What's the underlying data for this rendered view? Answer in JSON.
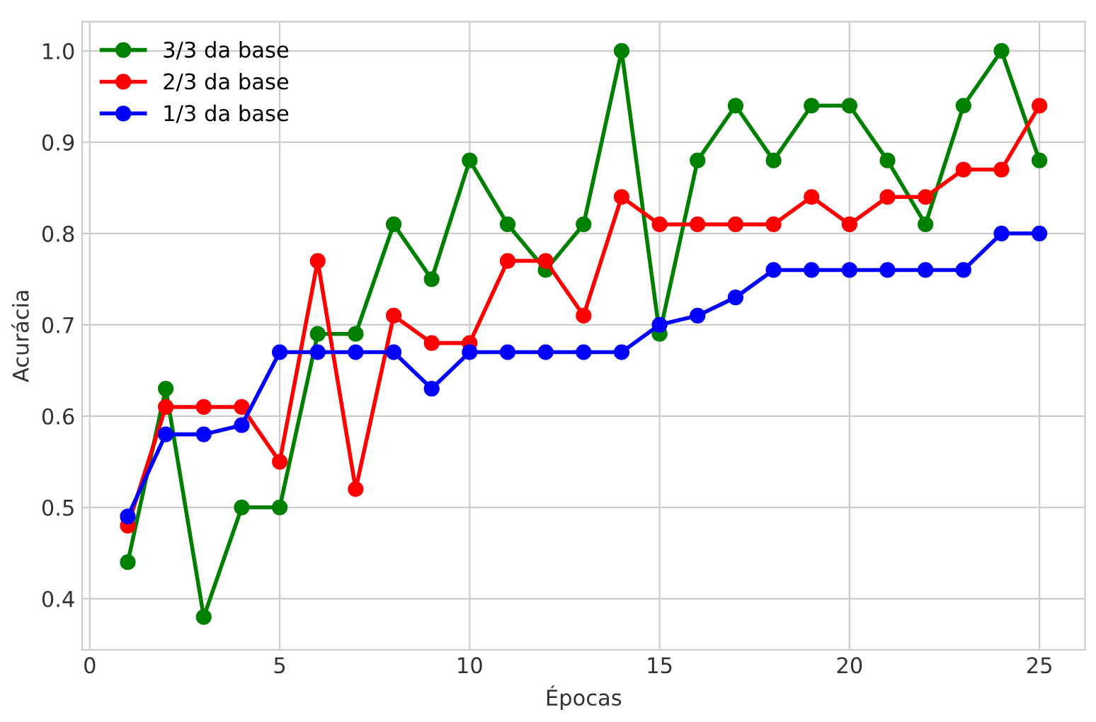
{
  "chart_data": {
    "type": "line",
    "xlabel": "Épocas",
    "ylabel": "Acurácia",
    "x": [
      1,
      2,
      3,
      4,
      5,
      6,
      7,
      8,
      9,
      10,
      11,
      12,
      13,
      14,
      15,
      16,
      17,
      18,
      19,
      20,
      21,
      22,
      23,
      24,
      25
    ],
    "series": [
      {
        "name": "3/3 da base",
        "color": "#008000",
        "values": [
          0.44,
          0.63,
          0.38,
          0.5,
          0.5,
          0.69,
          0.69,
          0.81,
          0.75,
          0.88,
          0.81,
          0.76,
          0.81,
          1.0,
          0.69,
          0.88,
          0.94,
          0.88,
          0.94,
          0.94,
          0.88,
          0.81,
          0.94,
          1.0,
          0.88
        ]
      },
      {
        "name": "2/3 da base",
        "color": "#ff0000",
        "values": [
          0.48,
          0.61,
          0.61,
          0.61,
          0.55,
          0.77,
          0.52,
          0.71,
          0.68,
          0.68,
          0.77,
          0.77,
          0.71,
          0.84,
          0.81,
          0.81,
          0.81,
          0.81,
          0.84,
          0.81,
          0.84,
          0.84,
          0.87,
          0.87,
          0.94
        ]
      },
      {
        "name": "1/3 da base",
        "color": "#0000ff",
        "values": [
          0.49,
          0.58,
          0.58,
          0.59,
          0.67,
          0.67,
          0.67,
          0.67,
          0.63,
          0.67,
          0.67,
          0.67,
          0.67,
          0.67,
          0.7,
          0.71,
          0.73,
          0.76,
          0.76,
          0.76,
          0.76,
          0.76,
          0.76,
          0.8,
          0.8
        ]
      }
    ],
    "xlim": [
      -0.2,
      26.2
    ],
    "ylim": [
      0.344,
      1.032
    ],
    "xticks": [
      0,
      5,
      10,
      15,
      20,
      25
    ],
    "yticks": [
      0.4,
      0.5,
      0.6,
      0.7,
      0.8,
      0.9,
      {
        "value": 1,
        "label": "1.0"
      }
    ],
    "grid": true,
    "legend": "top left",
    "marker": "circle",
    "line_style": "solid"
  }
}
